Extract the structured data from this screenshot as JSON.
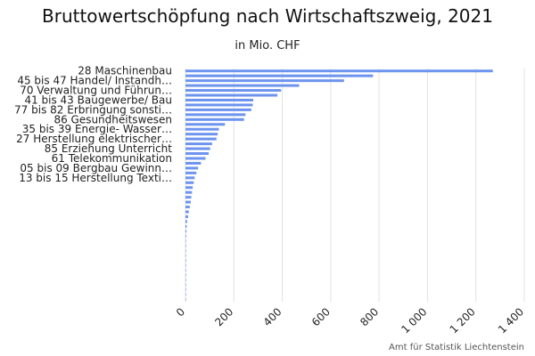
{
  "chart_data": {
    "type": "bar",
    "orientation": "horizontal",
    "title": "Bruttowertschöpfung nach Wirtschaftszweig, 2021",
    "subtitle": "in Mio. CHF",
    "source": "Amt für Statistik Liechtenstein",
    "bar_color": "#6d94ef",
    "grid_color": "#e2e2e2",
    "xlim": [
      0,
      1400
    ],
    "xticks": [
      0,
      200,
      400,
      600,
      800,
      1000,
      1200,
      1400
    ],
    "xtick_labels": [
      "0",
      "200",
      "400",
      "600",
      "800",
      "1 000",
      "1 200",
      "1 400"
    ],
    "categories": [
      "28 Maschinenbau",
      "",
      "45 bis 47 Handel/ Instandh…",
      "",
      "70 Verwaltung und Führun…",
      "",
      "41 bis 43 Baugewerbe/ Bau",
      "",
      "77 bis 82 Erbringung sonsti…",
      "",
      "86 Gesundheitswesen",
      "",
      "35 bis 39 Energie- Wasser…",
      "",
      "27 Herstellung elektrischer…",
      "",
      "85 Erziehung Unterricht",
      "",
      "61 Telekommunikation",
      "",
      "05 bis 09 Bergbau Gewinn…",
      "",
      "13 bis 15 Herstellung Texti…",
      "",
      "",
      "",
      "",
      "",
      "",
      "",
      "",
      "",
      "",
      "",
      "",
      "",
      "",
      "",
      "",
      "",
      "",
      "",
      "",
      "",
      "",
      "",
      "",
      ""
    ],
    "values": [
      1270,
      775,
      655,
      470,
      395,
      380,
      280,
      278,
      272,
      248,
      242,
      163,
      138,
      133,
      128,
      110,
      102,
      96,
      83,
      64,
      52,
      45,
      38,
      34,
      30,
      27,
      24,
      22,
      18,
      14,
      11,
      7,
      5,
      4,
      3,
      2,
      1,
      1,
      0.5,
      0.5,
      0.3,
      0.2,
      0.1,
      0.1,
      0.05,
      0.02,
      0.01,
      0.01
    ]
  }
}
